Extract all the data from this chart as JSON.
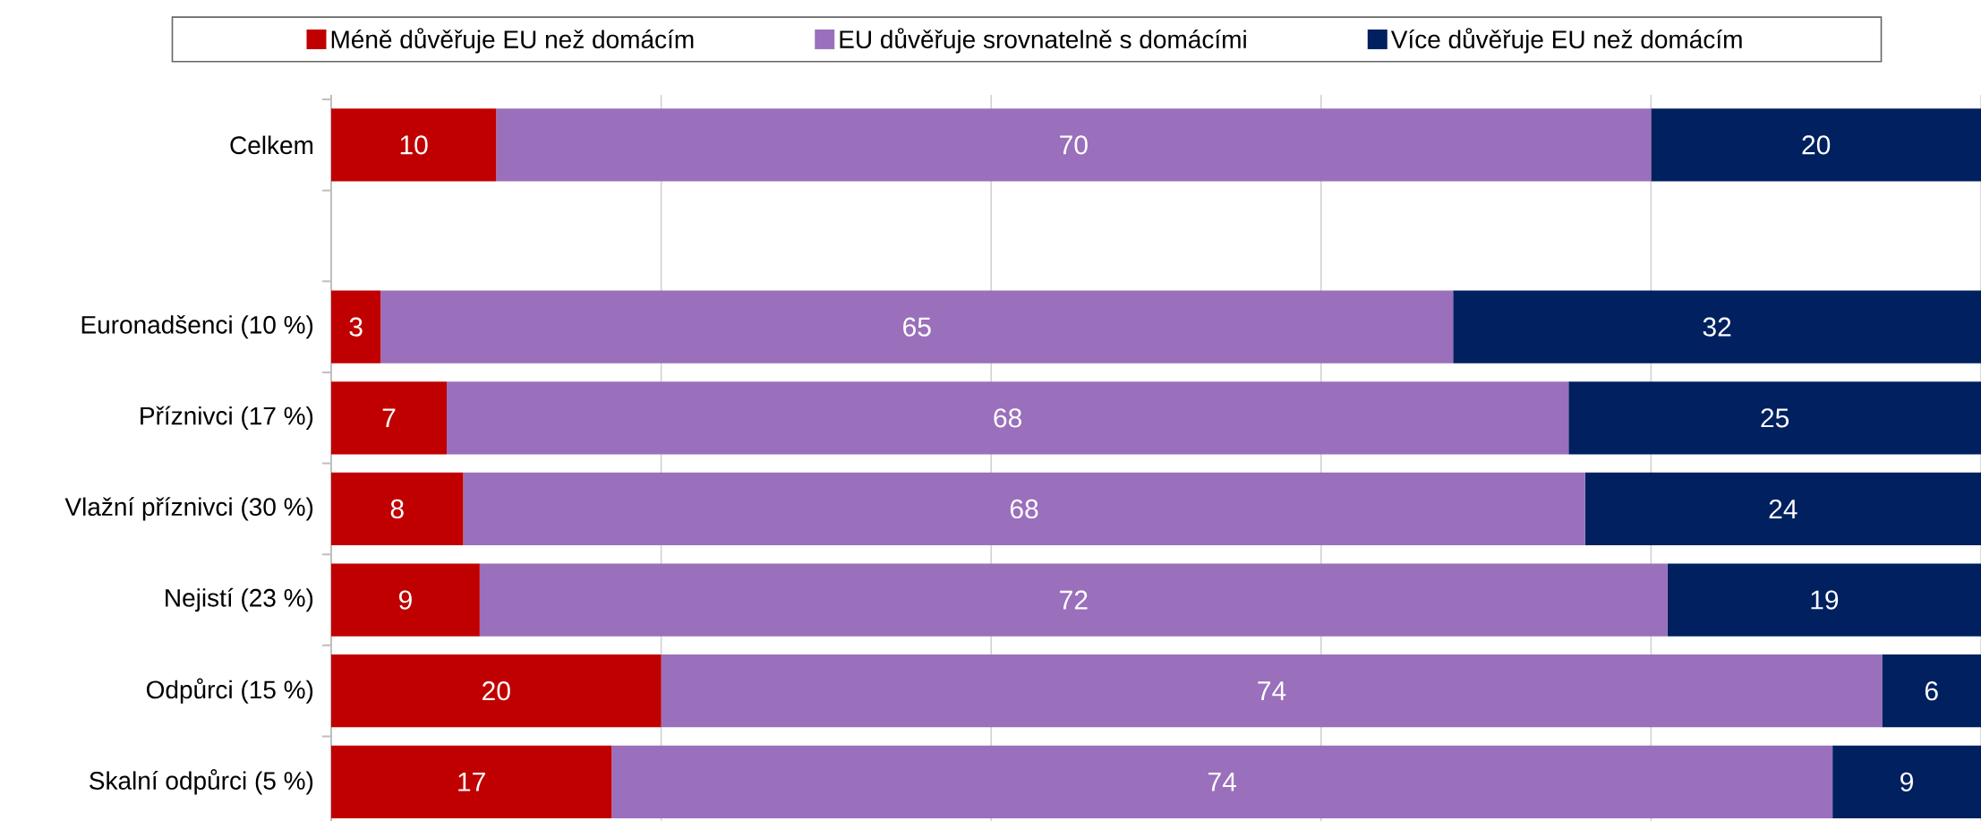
{
  "chart_data": {
    "type": "bar",
    "orientation": "horizontal",
    "stacked": true,
    "data_labels": true,
    "grid": "x",
    "legend": "top",
    "tick_labels": "y",
    "categories": [
      "Celkem",
      null,
      "Euronadšenci (10 %)",
      "Příznivci (17 %)",
      "Vlažní příznivci (30 %)",
      "Nejistí (23 %)",
      "Odpůrci (15 %)",
      "Skalní odpůrci (5 %)"
    ],
    "series": [
      {
        "name": "Méně důvěřuje EU než domácím",
        "color": "#c00000",
        "values": [
          10,
          null,
          3,
          7,
          8,
          9,
          20,
          17
        ]
      },
      {
        "name": "EU důvěřuje srovnatelně s domácími",
        "color": "#9a6fbb",
        "values": [
          70,
          null,
          65,
          68,
          68,
          72,
          74,
          74
        ]
      },
      {
        "name": "Více důvěřuje EU než domácím",
        "color": "#002060",
        "values": [
          20,
          null,
          32,
          25,
          24,
          19,
          6,
          9
        ]
      }
    ]
  }
}
